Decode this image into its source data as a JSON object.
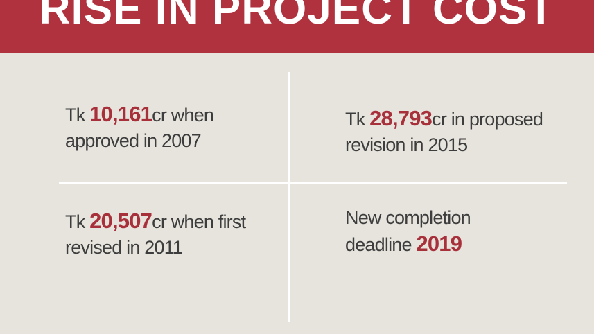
{
  "header": {
    "title": "RISE IN PROJECT COST"
  },
  "cells": [
    {
      "lines": [
        [
          {
            "text": "Tk "
          },
          {
            "text": "10,161",
            "emphasis": true
          },
          {
            "text": "cr when"
          }
        ],
        [
          {
            "text": "approved in 2007"
          }
        ]
      ]
    },
    {
      "lines": [
        [
          {
            "text": "Tk "
          },
          {
            "text": "28,793",
            "emphasis": true
          },
          {
            "text": "cr in proposed"
          }
        ],
        [
          {
            "text": "revision in 2015"
          }
        ]
      ]
    },
    {
      "lines": [
        [
          {
            "text": "Tk "
          },
          {
            "text": "20,507",
            "emphasis": true
          },
          {
            "text": "cr when first"
          }
        ],
        [
          {
            "text": "revised in 2011"
          }
        ]
      ]
    },
    {
      "lines": [
        [
          {
            "text": "New completion"
          }
        ],
        [
          {
            "text": "deadline "
          },
          {
            "text": "2019",
            "emphasis": true
          }
        ]
      ]
    }
  ]
}
